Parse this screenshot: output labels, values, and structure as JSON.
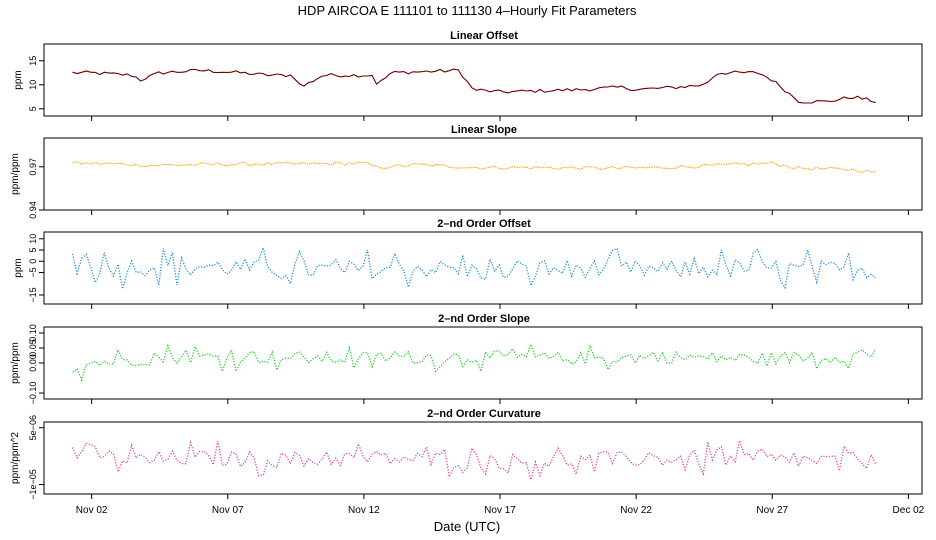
{
  "figure": {
    "title": "HDP   AIRCOA E   111101 to 111130   4–Hourly Fit Parameters",
    "xlabel": "Date (UTC)",
    "xticks": [
      "Nov 02",
      "Nov 07",
      "Nov 12",
      "Nov 17",
      "Nov 22",
      "Nov 27",
      "Dec 02"
    ],
    "xtick_days": [
      2,
      7,
      12,
      17,
      22,
      27,
      32
    ],
    "xlim_days": [
      0.25,
      32.5
    ],
    "data_day_range": [
      1.3,
      30.8
    ],
    "points_per_day": 6
  },
  "chart_data": [
    {
      "type": "line",
      "title": "Linear Offset",
      "ylabel": "ppm",
      "color": "#8b0000",
      "ylim": [
        3.5,
        18.5
      ],
      "yticks": [
        5,
        10,
        15
      ],
      "yticklabels": [
        "5",
        "10",
        "15"
      ],
      "series_keypoints": [
        {
          "day": 1.3,
          "value": 12.5
        },
        {
          "day": 2.0,
          "value": 12.5
        },
        {
          "day": 3.5,
          "value": 12.0
        },
        {
          "day": 3.8,
          "value": 11.0
        },
        {
          "day": 4.5,
          "value": 12.5
        },
        {
          "day": 6.0,
          "value": 13.0
        },
        {
          "day": 7.5,
          "value": 12.5
        },
        {
          "day": 8.5,
          "value": 12.0
        },
        {
          "day": 9.4,
          "value": 12.0
        },
        {
          "day": 9.7,
          "value": 9.5
        },
        {
          "day": 10.5,
          "value": 12.0
        },
        {
          "day": 11.5,
          "value": 12.0
        },
        {
          "day": 12.3,
          "value": 12.0
        },
        {
          "day": 12.5,
          "value": 10.0
        },
        {
          "day": 13.0,
          "value": 12.5
        },
        {
          "day": 15.5,
          "value": 13.0
        },
        {
          "day": 16.0,
          "value": 9.0
        },
        {
          "day": 17.0,
          "value": 8.5
        },
        {
          "day": 20.0,
          "value": 9.0
        },
        {
          "day": 21.5,
          "value": 9.5
        },
        {
          "day": 22.0,
          "value": 9.0
        },
        {
          "day": 23.5,
          "value": 9.5
        },
        {
          "day": 24.5,
          "value": 10.0
        },
        {
          "day": 25.0,
          "value": 12.5
        },
        {
          "day": 26.5,
          "value": 12.5
        },
        {
          "day": 27.0,
          "value": 11.0
        },
        {
          "day": 28.0,
          "value": 6.5
        },
        {
          "day": 29.0,
          "value": 6.5
        },
        {
          "day": 30.0,
          "value": 7.5
        },
        {
          "day": 30.8,
          "value": 6.5
        }
      ]
    },
    {
      "type": "line",
      "title": "Linear Slope",
      "ylabel": "ppm/ppm",
      "color": "#ffa500",
      "ylim": [
        0.94,
        0.99
      ],
      "yticks": [
        0.94,
        0.97
      ],
      "yticklabels": [
        "0.94",
        "0.97"
      ],
      "series_keypoints": [
        {
          "day": 1.3,
          "value": 0.9725
        },
        {
          "day": 3.0,
          "value": 0.972
        },
        {
          "day": 4.0,
          "value": 0.971
        },
        {
          "day": 6.0,
          "value": 0.9715
        },
        {
          "day": 8.0,
          "value": 0.972
        },
        {
          "day": 10.0,
          "value": 0.972
        },
        {
          "day": 12.0,
          "value": 0.9725
        },
        {
          "day": 12.5,
          "value": 0.9695
        },
        {
          "day": 14.0,
          "value": 0.9715
        },
        {
          "day": 16.0,
          "value": 0.9695
        },
        {
          "day": 18.0,
          "value": 0.9695
        },
        {
          "day": 21.0,
          "value": 0.969
        },
        {
          "day": 23.0,
          "value": 0.9695
        },
        {
          "day": 25.0,
          "value": 0.971
        },
        {
          "day": 27.0,
          "value": 0.9725
        },
        {
          "day": 28.0,
          "value": 0.969
        },
        {
          "day": 30.0,
          "value": 0.968
        },
        {
          "day": 30.8,
          "value": 0.966
        }
      ]
    },
    {
      "type": "line",
      "title": "2–nd Order Offset",
      "ylabel": "ppm",
      "color": "#1f8fd6",
      "ylim": [
        -19,
        13
      ],
      "yticks": [
        -15,
        -5,
        0,
        5,
        10
      ],
      "yticklabels": [
        "−15",
        "−5",
        "0",
        "5",
        "10"
      ],
      "series_keypoints": [
        {
          "day": 1.3,
          "value": 2
        },
        {
          "day": 2.5,
          "value": -3
        },
        {
          "day": 5.0,
          "value": -2
        },
        {
          "day": 8.0,
          "value": -3
        },
        {
          "day": 11.0,
          "value": -4
        },
        {
          "day": 14.0,
          "value": -3
        },
        {
          "day": 17.0,
          "value": -5
        },
        {
          "day": 20.0,
          "value": -3
        },
        {
          "day": 23.0,
          "value": -4
        },
        {
          "day": 26.0,
          "value": -3
        },
        {
          "day": 29.0,
          "value": -4
        },
        {
          "day": 30.8,
          "value": -4
        }
      ],
      "variability": 7
    },
    {
      "type": "line",
      "title": "2–nd Order Slope",
      "ylabel": "ppm/ppm",
      "color": "#22cc22",
      "ylim": [
        -0.12,
        0.12
      ],
      "yticks": [
        -0.1,
        0.0,
        0.05,
        0.1
      ],
      "yticklabels": [
        "−0.10",
        "0.00",
        "0.05",
        "0.10"
      ],
      "series_keypoints": [
        {
          "day": 1.3,
          "value": -0.02
        },
        {
          "day": 2.0,
          "value": 0.0
        },
        {
          "day": 5.0,
          "value": 0.02
        },
        {
          "day": 8.0,
          "value": 0.02
        },
        {
          "day": 11.0,
          "value": 0.015
        },
        {
          "day": 14.0,
          "value": 0.02
        },
        {
          "day": 17.0,
          "value": 0.02
        },
        {
          "day": 20.0,
          "value": 0.015
        },
        {
          "day": 23.0,
          "value": 0.02
        },
        {
          "day": 26.0,
          "value": 0.015
        },
        {
          "day": 29.0,
          "value": 0.02
        },
        {
          "day": 30.8,
          "value": 0.03
        }
      ],
      "variability": 0.035
    },
    {
      "type": "line",
      "title": "2–nd Order Curvature",
      "ylabel": "ppm/ppm^2",
      "color": "#e0409f",
      "ylim": [
        -1.25e-05,
        6.5e-06
      ],
      "yticks": [
        -1e-05,
        5e-06
      ],
      "yticklabels": [
        "−1e−05",
        "5e−06"
      ],
      "series_keypoints": [
        {
          "day": 1.3,
          "value": 0.0
        },
        {
          "day": 3.0,
          "value": -3.5e-06
        },
        {
          "day": 6.0,
          "value": -3e-06
        },
        {
          "day": 9.0,
          "value": -3.5e-06
        },
        {
          "day": 12.0,
          "value": -3e-06
        },
        {
          "day": 15.0,
          "value": -3.5e-06
        },
        {
          "day": 18.0,
          "value": -4e-06
        },
        {
          "day": 21.0,
          "value": -3.5e-06
        },
        {
          "day": 24.0,
          "value": -3e-06
        },
        {
          "day": 27.0,
          "value": -3.5e-06
        },
        {
          "day": 30.8,
          "value": -4e-06
        }
      ],
      "variability": 3.5e-06
    }
  ]
}
